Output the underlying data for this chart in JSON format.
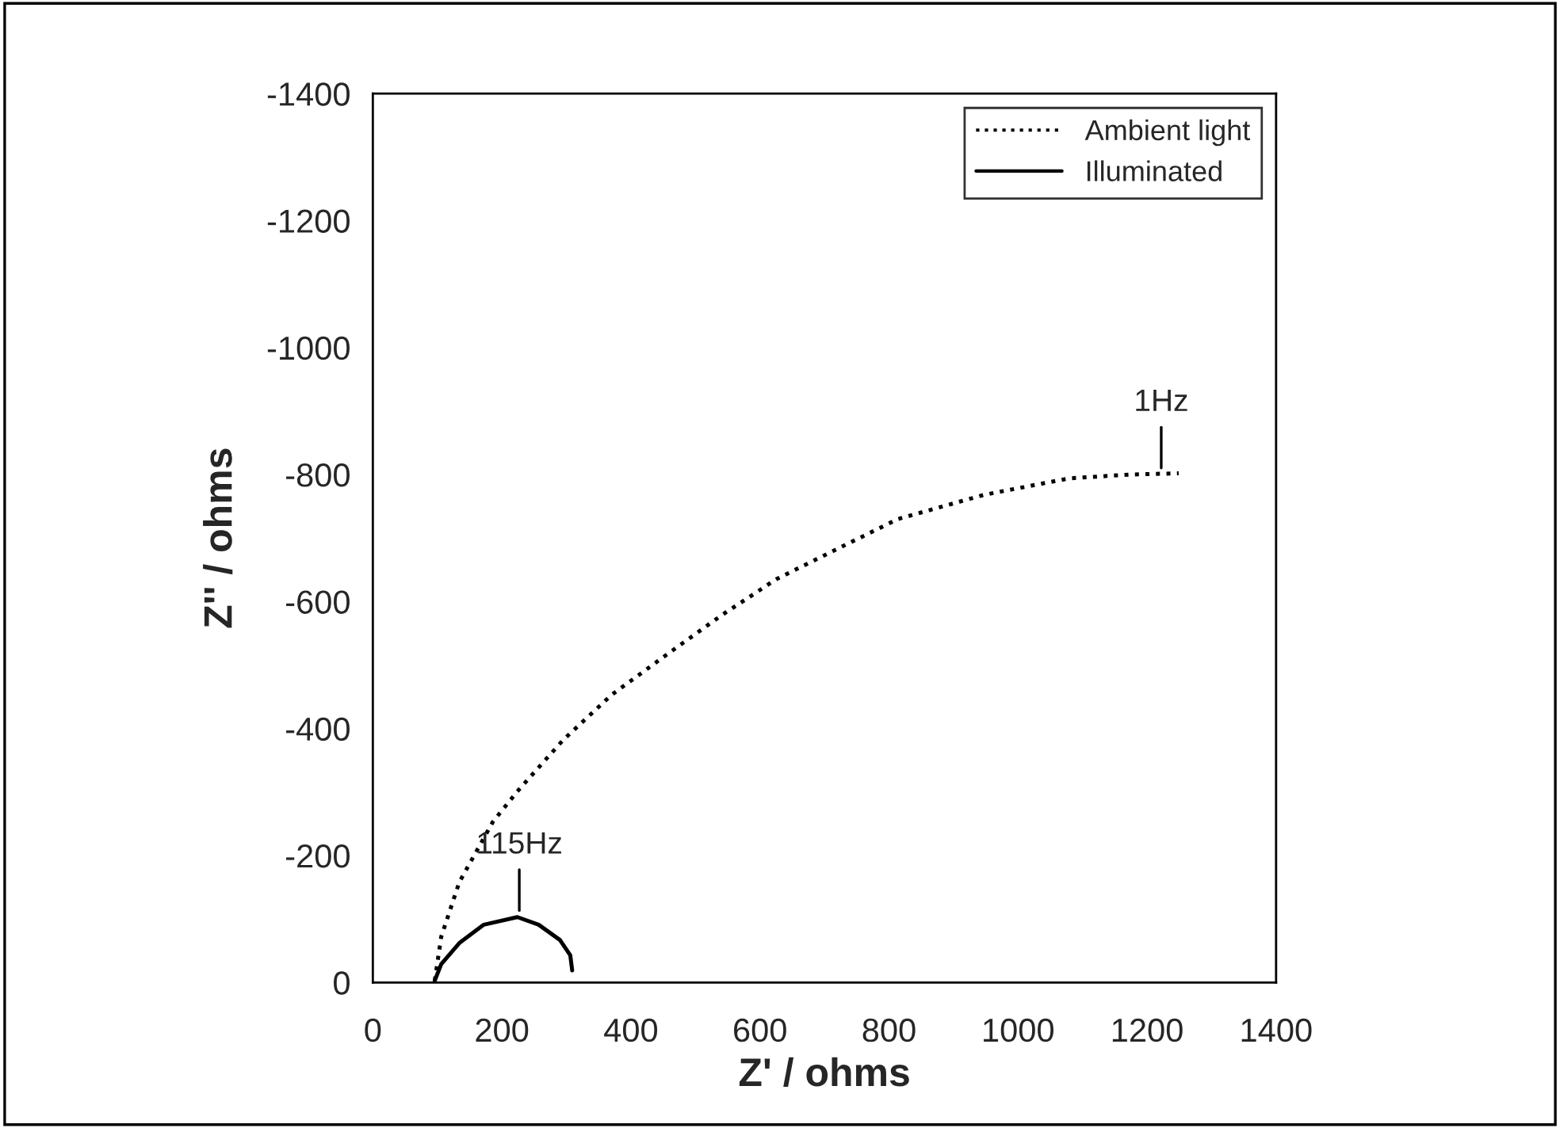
{
  "chart_data": {
    "type": "line",
    "xlabel": "Z' / ohms",
    "ylabel": "Z'' / ohms",
    "xlim": [
      0,
      1400
    ],
    "xticks": [
      0,
      200,
      400,
      600,
      800,
      1000,
      1200,
      1400
    ],
    "ylim": [
      0,
      -1400
    ],
    "yticks": [
      0,
      -200,
      -400,
      -600,
      -800,
      -1000,
      -1200,
      -1400
    ],
    "legend": "top right",
    "grid": false,
    "series": [
      {
        "name": "Ambient light",
        "color": "#000000",
        "line_style": "dotted",
        "x": [
          96,
          106,
          134,
          186,
          224,
          295,
          370,
          455,
          540,
          625,
          720,
          814,
          947,
          1079,
          1173,
          1249
        ],
        "values": [
          -3,
          -72,
          -158,
          -253,
          -301,
          -382,
          -453,
          -516,
          -578,
          -635,
          -683,
          -730,
          -768,
          -794,
          -800,
          -802
        ]
      },
      {
        "name": "Illuminated",
        "color": "#000000",
        "line_style": "solid",
        "x": [
          96,
          106,
          134,
          172,
          224,
          257,
          290,
          306,
          309
        ],
        "values": [
          -3,
          -29,
          -62,
          -91,
          -103,
          -91,
          -67,
          -43,
          -19
        ]
      }
    ],
    "annotations": [
      {
        "text": "1Hz",
        "x": 1222,
        "y": -800
      },
      {
        "text": "115Hz",
        "x": 227,
        "y": -103
      }
    ]
  }
}
